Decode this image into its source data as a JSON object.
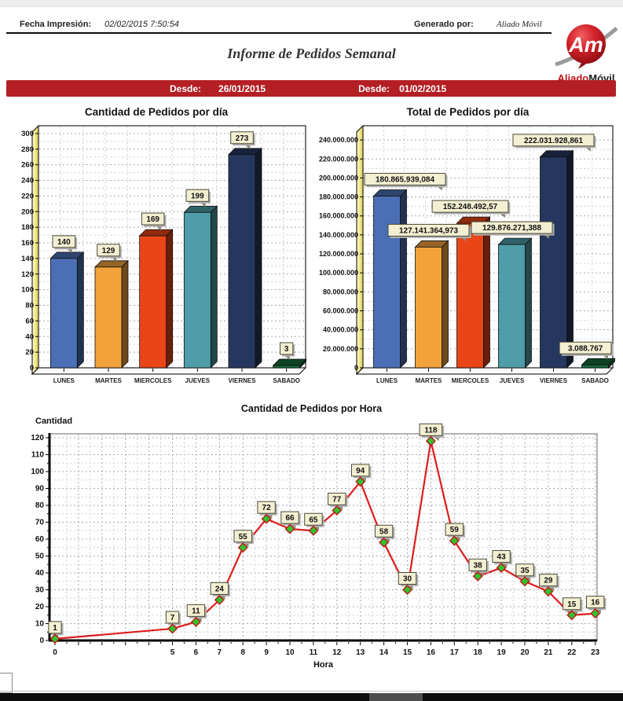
{
  "header": {
    "fecha_label": "Fecha Impresión:",
    "fecha_value": "02/02/2015 7:50:54",
    "generado_label": "Generado por:",
    "generado_value": "Aliado Móvil",
    "title": "Informe de Pedidos Semanal"
  },
  "logo": {
    "monogram": "Am",
    "brand_red": "Aliado",
    "brand_dark": "Móvil",
    "balloon_color": "#c0131a"
  },
  "band": {
    "color": "#b41f24",
    "desde1_label": "Desde:",
    "desde1_value": "26/01/2015",
    "desde2_label": "Desde:",
    "desde2_value": "01/02/2015"
  },
  "theme": {
    "label_box_bg": "#f3efd2",
    "label_box_border": "#4a4a3a",
    "grid_major": "#a8a8a8",
    "grid_minor": "#cfcfcf",
    "wall_yellow_light": "#ffffd8",
    "wall_yellow_dark": "#e3ce45"
  },
  "chart_data": [
    {
      "type": "bar",
      "title": "Cantidad de Pedidos por día",
      "categories": [
        "LUNES",
        "MARTES",
        "MIERCOLES",
        "JUEVES",
        "VIERNES",
        "SABADO"
      ],
      "values": [
        140,
        129,
        169,
        199,
        273,
        3
      ],
      "value_labels": [
        "140",
        "129",
        "169",
        "199",
        "273",
        "3"
      ],
      "bar_colors": [
        "#4a6fb5",
        "#f2a23b",
        "#ea4517",
        "#4e9da8",
        "#26375f",
        "#156b3e"
      ],
      "ylim": [
        0,
        310
      ],
      "ytick_step": 20,
      "ytick_max": 300,
      "yminor_step": 10,
      "thousands_sep": "",
      "grid": true,
      "legend": "none"
    },
    {
      "type": "bar",
      "title": "Total de Pedidos por día",
      "categories": [
        "LUNES",
        "MARTES",
        "MIERCOLES",
        "JUEVES",
        "VIERNES",
        "SABADO"
      ],
      "values": [
        180865939.084,
        127141364.973,
        152248492.57,
        129876271.388,
        222031928.861,
        3088767
      ],
      "value_labels": [
        "180.865.939,084",
        "127.141.364,973",
        "152.248.492,57",
        "129.876.271,388",
        "222.031.928,861",
        "3.088.767"
      ],
      "bar_colors": [
        "#4a6fb5",
        "#f2a23b",
        "#ea4517",
        "#4e9da8",
        "#26375f",
        "#156b3e"
      ],
      "ylim": [
        0,
        255000000
      ],
      "ytick_step": 20000000,
      "ytick_max": 240000000,
      "yminor_step": 10000000,
      "thousands_sep": ".",
      "grid": true,
      "legend": "none"
    },
    {
      "type": "line",
      "title": "Cantidad de Pedidos por Hora",
      "xlabel": "Hora",
      "ylabel": "Cantidad",
      "x": [
        0,
        5,
        6,
        7,
        8,
        9,
        10,
        11,
        12,
        13,
        14,
        15,
        16,
        17,
        18,
        19,
        20,
        21,
        22,
        23
      ],
      "values": [
        1,
        7,
        11,
        24,
        55,
        72,
        66,
        65,
        77,
        94,
        58,
        30,
        118,
        59,
        38,
        43,
        35,
        29,
        15,
        16
      ],
      "value_labels": [
        "1",
        "7",
        "11",
        "24",
        "55",
        "72",
        "66",
        "65",
        "77",
        "94",
        "58",
        "30",
        "118",
        "59",
        "38",
        "43",
        "35",
        "29",
        "15",
        "16"
      ],
      "xticks": [
        0,
        5,
        6,
        7,
        8,
        9,
        10,
        11,
        12,
        13,
        14,
        15,
        16,
        17,
        18,
        19,
        20,
        21,
        22,
        23
      ],
      "xrange": [
        0,
        23
      ],
      "ylim": [
        0,
        120
      ],
      "ytick_step": 10,
      "yminor_step": 5,
      "line_color": "#dd1d1d",
      "marker_color": "#2ec42e",
      "marker_edge": "#c01515",
      "grid": true,
      "legend": "none"
    }
  ]
}
